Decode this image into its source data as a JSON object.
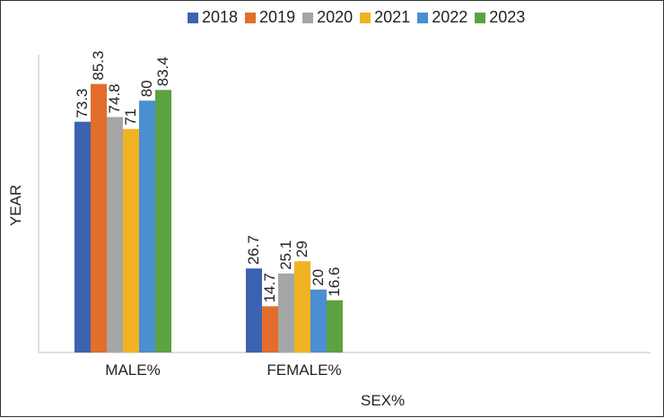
{
  "chart_data": {
    "type": "bar",
    "title": "",
    "xlabel": "SEX%",
    "ylabel": "YEAR",
    "categories": [
      "MALE%",
      "FEMALE%"
    ],
    "series": [
      {
        "name": "2018",
        "color": "#3c63b0",
        "values": [
          73.3,
          26.7
        ],
        "labels": [
          "73.3",
          "26.7"
        ]
      },
      {
        "name": "2019",
        "color": "#e36d2a",
        "values": [
          85.3,
          14.7
        ],
        "labels": [
          "85.3",
          "14.7"
        ]
      },
      {
        "name": "2020",
        "color": "#a6a6a6",
        "values": [
          74.8,
          25.1
        ],
        "labels": [
          "74.8",
          "25.1"
        ]
      },
      {
        "name": "2021",
        "color": "#f0b323",
        "values": [
          71,
          29
        ],
        "labels": [
          "71",
          "29"
        ]
      },
      {
        "name": "2022",
        "color": "#4a8fd1",
        "values": [
          80,
          20
        ],
        "labels": [
          "80",
          "20"
        ]
      },
      {
        "name": "2023",
        "color": "#5da242",
        "values": [
          83.4,
          16.6
        ],
        "labels": [
          "83.4",
          "16.6"
        ]
      }
    ],
    "ylim": [
      0,
      100
    ],
    "legend": "top",
    "grid": false
  }
}
